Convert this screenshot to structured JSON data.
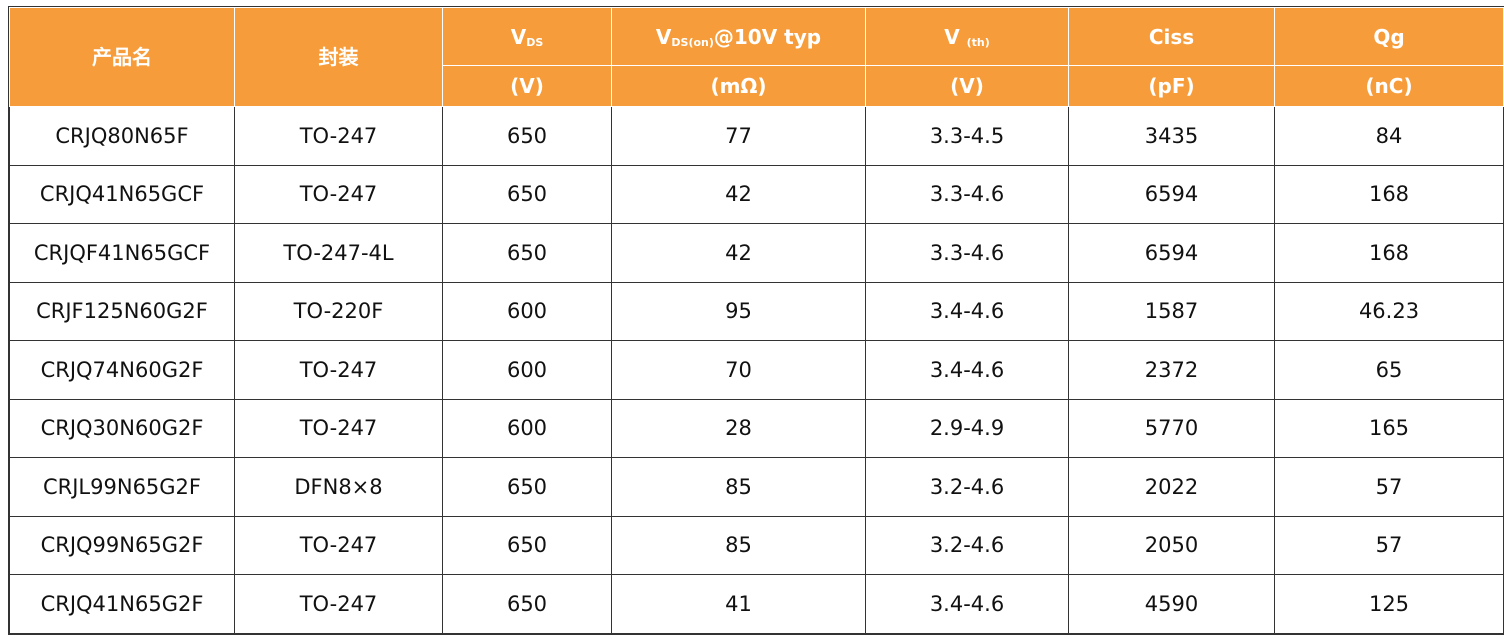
{
  "header": {
    "product_name": "产品名",
    "package": "封装",
    "vds": {
      "main": "V",
      "sub": "DS",
      "unit": "(V)"
    },
    "rds": {
      "main": "V",
      "sub": "DS(on)",
      "suffix": "@10V typ",
      "unit": "(mΩ)"
    },
    "vth": {
      "main": "V ",
      "sub": "(th)",
      "unit": "(V)"
    },
    "ciss": {
      "main": "Ciss",
      "unit": "(pF)"
    },
    "qg": {
      "main": "Qg",
      "unit": "(nC)"
    }
  },
  "rows": [
    [
      "CRJQ80N65F",
      "TO-247",
      "650",
      "77",
      "3.3-4.5",
      "3435",
      "84"
    ],
    [
      "CRJQ41N65GCF",
      "TO-247",
      "650",
      "42",
      "3.3-4.6",
      "6594",
      "168"
    ],
    [
      "CRJQF41N65GCF",
      "TO-247-4L",
      "650",
      "42",
      "3.3-4.6",
      "6594",
      "168"
    ],
    [
      "CRJF125N60G2F",
      "TO-220F",
      "600",
      "95",
      "3.4-4.6",
      "1587",
      "46.23"
    ],
    [
      "CRJQ74N60G2F",
      "TO-247",
      "600",
      "70",
      "3.4-4.6",
      "2372",
      "65"
    ],
    [
      "CRJQ30N60G2F",
      "TO-247",
      "600",
      "28",
      "2.9-4.9",
      "5770",
      "165"
    ],
    [
      "CRJL99N65G2F",
      "DFN8×8",
      "650",
      "85",
      "3.2-4.6",
      "2022",
      "57"
    ],
    [
      "CRJQ99N65G2F",
      "TO-247",
      "650",
      "85",
      "3.2-4.6",
      "2050",
      "57"
    ],
    [
      "CRJQ41N65G2F",
      "TO-247",
      "650",
      "41",
      "3.4-4.6",
      "4590",
      "125"
    ]
  ],
  "colors": {
    "header_bg": "#f79c3a",
    "header_text": "#ffffff",
    "border": "#333333"
  }
}
